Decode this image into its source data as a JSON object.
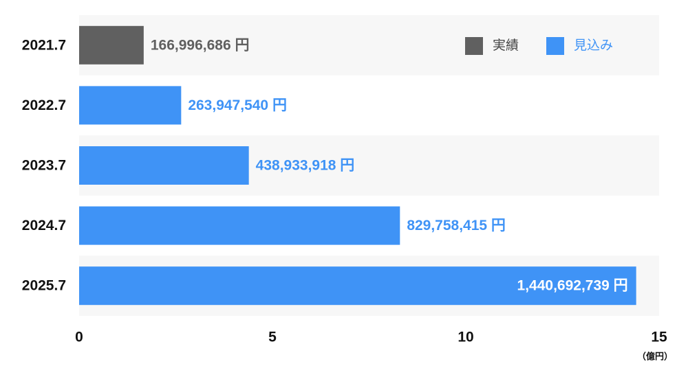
{
  "chart_data": {
    "type": "bar",
    "orientation": "horizontal",
    "unit_label": "（億円）",
    "categories": [
      "2021.7",
      "2022.7",
      "2023.7",
      "2024.7",
      "2025.7"
    ],
    "values": [
      1.66996686,
      2.6394754,
      4.38933918,
      8.29758415,
      14.40692739
    ],
    "value_labels": [
      "166,996,686 円",
      "263,947,540 円",
      "438,933,918 円",
      "829,758,415 円",
      "1,440,692,739 円"
    ],
    "colors": [
      "#606060",
      "#3f93f6",
      "#3f93f6",
      "#3f93f6",
      "#3f93f6"
    ],
    "legend": [
      {
        "name": "実績",
        "color": "#606060"
      },
      {
        "name": "見込み",
        "color": "#3f93f6"
      }
    ],
    "legend_position": "upper right",
    "xlim": [
      0,
      15
    ],
    "xticks": [
      0,
      5,
      10,
      15
    ]
  }
}
